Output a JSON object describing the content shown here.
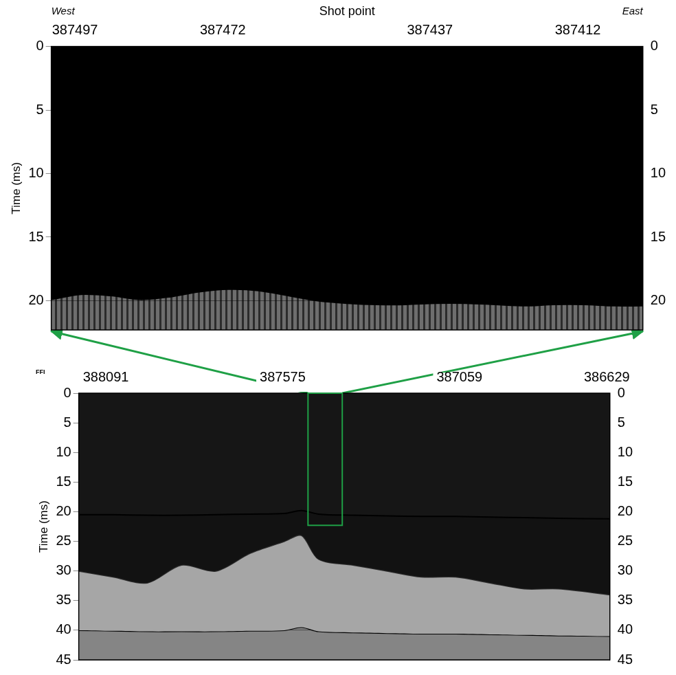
{
  "chart_data": [
    {
      "type": "line",
      "x_label": "Shot point",
      "y_label": "Time (ms)",
      "annotations": [
        "West",
        "East"
      ],
      "x": [
        387501,
        387496,
        387491,
        387486,
        387481,
        387476,
        387471,
        387466,
        387461,
        387456,
        387451,
        387446,
        387441,
        387436,
        387431,
        387426,
        387421,
        387416,
        387411,
        387406,
        387401
      ],
      "series": [
        {
          "color": "#000000",
          "values": [
            19.9,
            19.5,
            19.6,
            19.9,
            19.7,
            19.3,
            19.1,
            19.2,
            19.6,
            20.0,
            20.2,
            20.3,
            20.3,
            20.2,
            20.2,
            20.3,
            20.4,
            20.3,
            20.3,
            20.4,
            20.4
          ]
        }
      ],
      "xlim": [
        387501,
        387401
      ],
      "xticks": [
        387497,
        387472,
        387437,
        387412
      ],
      "ylim": [
        0,
        22.3
      ],
      "yticks": [
        0,
        5,
        10,
        15,
        20
      ],
      "grid": true
    },
    {
      "type": "line",
      "y_label": "Time (ms)",
      "annotations": [
        "FFI"
      ],
      "x": [
        388170,
        388070,
        387970,
        387870,
        387770,
        387670,
        387570,
        387520,
        387470,
        387370,
        387270,
        387170,
        387070,
        386970,
        386870,
        386770,
        386620
      ],
      "series": [
        {
          "color": "#000000",
          "values": [
            20.5,
            20.5,
            20.6,
            20.6,
            20.5,
            20.4,
            20.3,
            19.8,
            20.4,
            20.6,
            20.7,
            20.8,
            20.8,
            20.9,
            21.0,
            21.1,
            21.2
          ]
        },
        {
          "color": "#303030",
          "values": [
            30,
            31,
            32,
            29,
            30,
            27,
            25,
            24,
            28,
            29,
            30,
            31,
            31,
            32,
            33,
            33,
            34
          ]
        },
        {
          "color": "#000000",
          "values": [
            40.0,
            40.1,
            40.2,
            40.2,
            40.2,
            40.1,
            40.0,
            39.5,
            40.2,
            40.4,
            40.5,
            40.6,
            40.6,
            40.7,
            40.8,
            40.9,
            41.0
          ]
        }
      ],
      "xlim": [
        388170,
        386620
      ],
      "xticks": [
        388091,
        387575,
        387059,
        386629
      ],
      "ylim": [
        0,
        45
      ],
      "yticks": [
        0,
        5,
        10,
        15,
        20,
        25,
        30,
        35,
        40,
        45
      ],
      "grid": true
    }
  ]
}
